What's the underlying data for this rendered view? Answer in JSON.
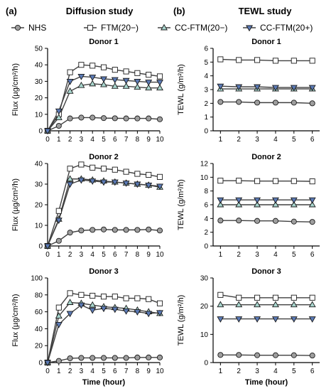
{
  "figure": {
    "panel_a_letter": "(a)",
    "panel_a_title": "Diffusion study",
    "panel_b_letter": "(b)",
    "panel_b_title": "TEWL study",
    "colors": {
      "NHS": "#9e9e9e",
      "FTM(20−)": "#ffffff",
      "CC-FTM(20−)": "#a8d5cd",
      "CC-FTM(20+)": "#5b7ab5",
      "line": "#404040"
    }
  },
  "legend": [
    {
      "name": "NHS",
      "marker": "circle"
    },
    {
      "name": "FTM(20−)",
      "marker": "square"
    },
    {
      "name": "CC-FTM(20−)",
      "marker": "triangle-up"
    },
    {
      "name": "CC-FTM(20+)",
      "marker": "triangle-down"
    }
  ],
  "chart_data": [
    {
      "type": "line",
      "title": "Donor 1",
      "xlabel": "",
      "ylabel": "Flux (µg/cm²/h)",
      "x": [
        0,
        1,
        2,
        3,
        4,
        5,
        6,
        7,
        8,
        9,
        10
      ],
      "xlim": [
        0,
        10
      ],
      "ylim": [
        0,
        50
      ],
      "yticks": [
        0,
        10,
        20,
        30,
        40,
        50
      ],
      "xticks": [
        "0",
        "1",
        "2",
        "3",
        "4",
        "5",
        "6",
        "7",
        "8",
        "9",
        "10"
      ],
      "series": [
        {
          "name": "NHS",
          "values": [
            0,
            3,
            7.5,
            8,
            8,
            7.7,
            7.6,
            7.5,
            7.5,
            7.5,
            7
          ]
        },
        {
          "name": "FTM(20−)",
          "values": [
            0,
            10,
            35.5,
            40,
            39.5,
            38.5,
            37,
            36,
            35,
            34,
            33
          ]
        },
        {
          "name": "CC-FTM(20−)",
          "values": [
            0,
            8,
            24,
            27.5,
            28.5,
            28,
            27,
            27,
            26.5,
            26,
            26
          ]
        },
        {
          "name": "CC-FTM(20+)",
          "values": [
            0,
            12,
            30,
            33,
            32.5,
            31.5,
            31,
            30.5,
            30,
            29.5,
            29.5
          ]
        }
      ]
    },
    {
      "type": "line",
      "title": "Donor 2",
      "xlabel": "",
      "ylabel": "Flux (µg/cm²/h)",
      "x": [
        0,
        1,
        2,
        3,
        4,
        5,
        6,
        7,
        8,
        9,
        10
      ],
      "xlim": [
        0,
        10
      ],
      "ylim": [
        0,
        40
      ],
      "yticks": [
        0,
        10,
        20,
        30,
        40
      ],
      "xticks": [
        "0",
        "1",
        "2",
        "3",
        "4",
        "5",
        "6",
        "7",
        "8",
        "9",
        "10"
      ],
      "series": [
        {
          "name": "NHS",
          "values": [
            0,
            2.5,
            6.5,
            7.5,
            7.8,
            8,
            7.8,
            7.8,
            7.8,
            8,
            7.5
          ]
        },
        {
          "name": "FTM(20−)",
          "values": [
            0,
            17,
            37.5,
            39.5,
            38,
            37.5,
            37,
            36,
            35,
            34.5,
            33.5
          ]
        },
        {
          "name": "CC-FTM(20−)",
          "values": [
            0,
            13,
            32.5,
            32.5,
            32,
            31.5,
            31,
            30.5,
            30,
            29.5,
            28.5
          ]
        },
        {
          "name": "CC-FTM(20+)",
          "values": [
            0,
            12.5,
            30,
            32,
            31.5,
            31,
            31,
            30.5,
            30,
            29.5,
            29
          ]
        }
      ]
    },
    {
      "type": "line",
      "title": "Donor 3",
      "xlabel": "Time (hour)",
      "ylabel": "Flux (µg/cm²/h)",
      "x": [
        0,
        1,
        2,
        3,
        4,
        5,
        6,
        7,
        8,
        9,
        10
      ],
      "xlim": [
        0,
        10
      ],
      "ylim": [
        0,
        100
      ],
      "yticks": [
        0,
        20,
        40,
        60,
        80,
        100
      ],
      "xticks": [
        "0",
        "1",
        "2",
        "3",
        "4",
        "5",
        "6",
        "7",
        "8",
        "9",
        "10"
      ],
      "series": [
        {
          "name": "NHS",
          "values": [
            0,
            2,
            5,
            5.5,
            5.5,
            5.5,
            5.5,
            5.5,
            6,
            6,
            6
          ]
        },
        {
          "name": "FTM(20−)",
          "values": [
            0,
            65,
            82,
            80,
            79,
            78,
            78,
            76,
            76,
            75,
            70
          ]
        },
        {
          "name": "CC-FTM(20−)",
          "values": [
            0,
            55,
            71,
            70,
            68,
            66,
            65,
            64,
            62,
            60,
            58
          ]
        },
        {
          "name": "CC-FTM(20+)",
          "values": [
            0,
            45,
            58,
            68,
            62,
            64,
            63,
            61,
            60,
            58,
            59
          ]
        }
      ]
    },
    {
      "type": "line",
      "title": "Donor 1",
      "xlabel": "",
      "ylabel": "TEWL (g/m²/h)",
      "x": [
        1,
        2,
        3,
        4,
        5,
        6
      ],
      "xlim": [
        0.6,
        6.4
      ],
      "ylim": [
        0,
        6
      ],
      "yticks": [
        0,
        1,
        2,
        3,
        4,
        5,
        6
      ],
      "xticks": [
        "1",
        "2",
        "3",
        "4",
        "5",
        "6"
      ],
      "series": [
        {
          "name": "NHS",
          "values": [
            2.1,
            2.1,
            2.05,
            2.05,
            2.05,
            2.0
          ]
        },
        {
          "name": "FTM(20−)",
          "values": [
            5.2,
            5.15,
            5.15,
            5.1,
            5.1,
            5.1
          ]
        },
        {
          "name": "CC-FTM(20−)",
          "values": [
            3.05,
            3.05,
            3.05,
            3.05,
            3.05,
            3.05
          ]
        },
        {
          "name": "CC-FTM(20+)",
          "values": [
            3.25,
            3.2,
            3.2,
            3.15,
            3.15,
            3.15
          ]
        }
      ]
    },
    {
      "type": "line",
      "title": "Donor 2",
      "xlabel": "",
      "ylabel": "TEWL (g/m²/h)",
      "x": [
        1,
        2,
        3,
        4,
        5,
        6
      ],
      "xlim": [
        0.6,
        6.4
      ],
      "ylim": [
        0,
        12
      ],
      "yticks": [
        0,
        2,
        4,
        6,
        8,
        10,
        12
      ],
      "xticks": [
        "1",
        "2",
        "3",
        "4",
        "5",
        "6"
      ],
      "series": [
        {
          "name": "NHS",
          "values": [
            3.7,
            3.7,
            3.65,
            3.65,
            3.55,
            3.5
          ]
        },
        {
          "name": "FTM(20−)",
          "values": [
            9.5,
            9.5,
            9.45,
            9.45,
            9.45,
            9.4
          ]
        },
        {
          "name": "CC-FTM(20−)",
          "values": [
            6.0,
            6.0,
            6.0,
            6.0,
            6.0,
            6.0
          ]
        },
        {
          "name": "CC-FTM(20+)",
          "values": [
            6.7,
            6.7,
            6.7,
            6.7,
            6.7,
            6.7
          ]
        }
      ]
    },
    {
      "type": "line",
      "title": "Donor 3",
      "xlabel": "Time (hour)",
      "ylabel": "TEWL (g/m²/h)",
      "x": [
        1,
        2,
        3,
        4,
        5,
        6
      ],
      "xlim": [
        0.6,
        6.4
      ],
      "ylim": [
        0,
        30
      ],
      "yticks": [
        0,
        10,
        20,
        30
      ],
      "xticks": [
        "1",
        "2",
        "3",
        "4",
        "5",
        "6"
      ],
      "series": [
        {
          "name": "NHS",
          "values": [
            2.7,
            2.7,
            2.6,
            2.6,
            2.6,
            2.5
          ]
        },
        {
          "name": "FTM(20−)",
          "values": [
            24,
            23,
            23,
            23,
            23,
            23
          ]
        },
        {
          "name": "CC-FTM(20−)",
          "values": [
            20.5,
            20.5,
            20.5,
            20.5,
            20.5,
            20.5
          ]
        },
        {
          "name": "CC-FTM(20+)",
          "values": [
            15.5,
            15.5,
            15.5,
            15.5,
            15.5,
            15.5
          ]
        }
      ]
    }
  ]
}
